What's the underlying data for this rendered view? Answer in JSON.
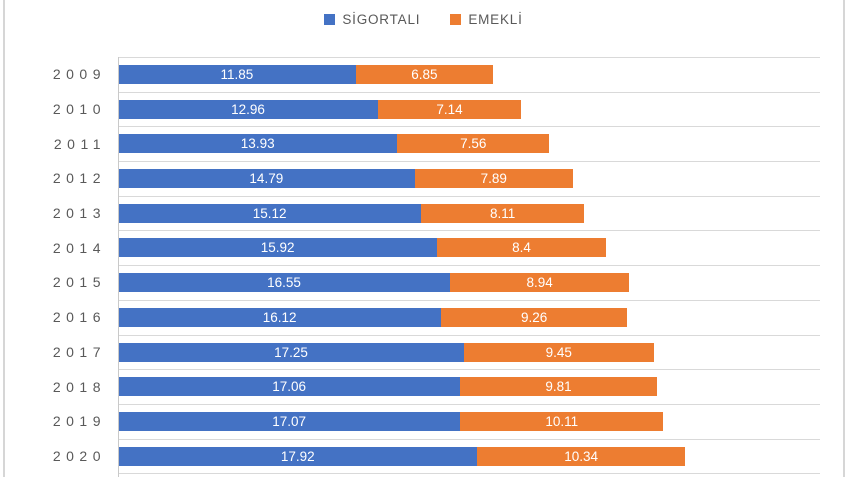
{
  "legend": {
    "position": "top"
  },
  "chart_data": {
    "type": "bar",
    "subtype": "horizontal-stacked",
    "title": "",
    "xlabel": "",
    "ylabel": "",
    "categories": [
      "2009",
      "2010",
      "2011",
      "2012",
      "2013",
      "2014",
      "2015",
      "2016",
      "2017",
      "2018",
      "2019",
      "2020"
    ],
    "series": [
      {
        "name": "SİGORTALI",
        "color": "#4472C4",
        "values": [
          11.85,
          12.96,
          13.93,
          14.79,
          15.12,
          15.92,
          16.55,
          16.12,
          17.25,
          17.06,
          17.07,
          17.92
        ]
      },
      {
        "name": "EMEKLİ",
        "color": "#ED7D31",
        "values": [
          6.85,
          7.14,
          7.56,
          7.89,
          8.11,
          8.4,
          8.94,
          9.26,
          9.45,
          9.81,
          10.11,
          10.34
        ]
      }
    ],
    "value_axis_max": 35,
    "gridlines": "category-horizontal",
    "legend_position": "top",
    "style": {
      "gridline_color": "#D9D9D9",
      "axis_line_color": "#C9C9C9",
      "category_label_color": "#595959",
      "data_label_color": "#FFFFFF",
      "frame_edge_color": "#D6D6D6"
    }
  }
}
